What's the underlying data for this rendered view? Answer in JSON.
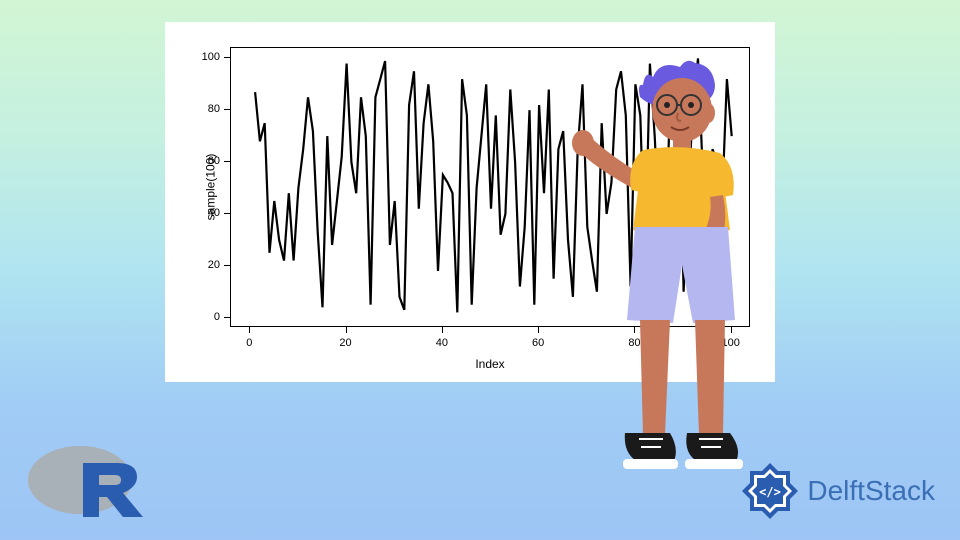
{
  "background": {
    "gradient_stops": [
      "#d2f5d4",
      "#c5f0e0",
      "#b0e4f0",
      "#a0ccf5",
      "#9ec5f5"
    ]
  },
  "chart": {
    "type": "line",
    "xlabel": "Index",
    "ylabel": "sample(100)",
    "xlim": [
      0,
      100
    ],
    "ylim": [
      0,
      100
    ],
    "xtick_step": 20,
    "ytick_step": 20,
    "xticks": [
      0,
      20,
      40,
      60,
      80,
      100
    ],
    "yticks": [
      0,
      20,
      40,
      60,
      80,
      100
    ],
    "background_color": "#ffffff",
    "border_color": "#000000",
    "line_color": "#000000",
    "line_width": 2.2,
    "label_fontsize": 12,
    "tick_fontsize": 11,
    "values": [
      87,
      68,
      75,
      25,
      45,
      30,
      22,
      48,
      22,
      50,
      65,
      85,
      72,
      33,
      4,
      70,
      28,
      45,
      62,
      98,
      60,
      48,
      85,
      70,
      5,
      85,
      92,
      99,
      28,
      45,
      8,
      3,
      82,
      95,
      42,
      75,
      90,
      68,
      18,
      55,
      52,
      48,
      2,
      92,
      78,
      5,
      50,
      70,
      90,
      42,
      78,
      32,
      40,
      88,
      60,
      12,
      35,
      80,
      5,
      82,
      48,
      88,
      15,
      65,
      72,
      30,
      8,
      65,
      90,
      35,
      22,
      10,
      75,
      40,
      52,
      88,
      95,
      78,
      12,
      90,
      78,
      20,
      98,
      70,
      32,
      8,
      72,
      80,
      95,
      10,
      50,
      82,
      100,
      55,
      8,
      65,
      60,
      45,
      92,
      70
    ]
  },
  "logos": {
    "r_color_ring": "#a8b0b8",
    "r_color_letter": "#2a5db0",
    "delft_text": "DelftStack",
    "delft_text_color": "#3a6fb5",
    "delft_badge_color": "#2a5db0"
  },
  "character": {
    "hair_color": "#6a5ae0",
    "skin_color": "#c8785a",
    "shirt_color": "#f5b82e",
    "shorts_color": "#b5b8f0",
    "shoe_color": "#1a1a1a",
    "shoe_sole_color": "#ffffff"
  }
}
